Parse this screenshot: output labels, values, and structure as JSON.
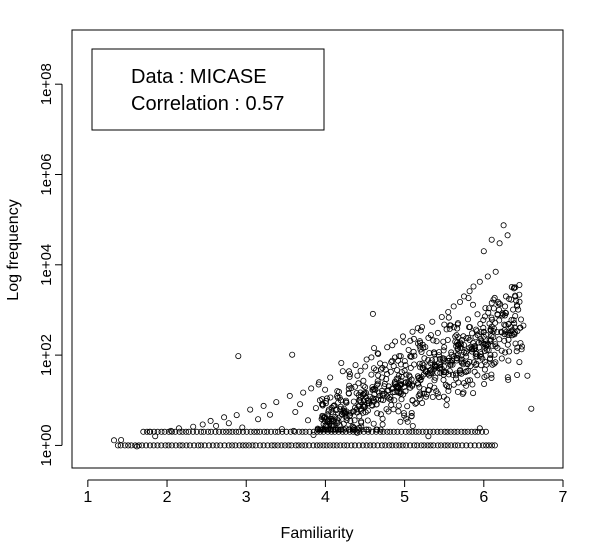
{
  "chart_data": {
    "type": "scatter",
    "title": "",
    "xlabel": "Familiarity",
    "ylabel": "Log frequency",
    "y_scale": "log10",
    "xlim": [
      0.8,
      7.0
    ],
    "ylim_log10": [
      -0.5,
      9.2
    ],
    "x_ticks": [
      1,
      2,
      3,
      4,
      5,
      6,
      7
    ],
    "x_tick_labels": [
      "1",
      "2",
      "3",
      "4",
      "5",
      "6",
      "7"
    ],
    "y_ticks_log10": [
      0,
      2,
      4,
      6,
      8
    ],
    "y_tick_labels": [
      "1e+00",
      "1e+02",
      "1e+04",
      "1e+06",
      "1e+08"
    ],
    "grid": false,
    "marker": "open-circle",
    "legend": {
      "placement": "top-left",
      "lines": [
        "Data : MICASE",
        "Correlation : 0.57"
      ]
    },
    "series": [
      {
        "points": [
          [
            1.33,
            1.3
          ],
          [
            1.42,
            1.32
          ],
          [
            1.62,
            0.95
          ],
          [
            1.78,
            2.0
          ],
          [
            1.85,
            1.6
          ],
          [
            2.05,
            2.1
          ],
          [
            2.15,
            2.4
          ],
          [
            2.33,
            2.6
          ],
          [
            2.45,
            2.9
          ],
          [
            2.55,
            3.5
          ],
          [
            2.62,
            2.7
          ],
          [
            2.72,
            4.2
          ],
          [
            2.78,
            3.1
          ],
          [
            2.88,
            4.7
          ],
          [
            2.9,
            95.0
          ],
          [
            2.95,
            2.5
          ],
          [
            3.05,
            6.2
          ],
          [
            3.15,
            3.8
          ],
          [
            3.22,
            7.5
          ],
          [
            3.3,
            4.8
          ],
          [
            3.38,
            9.1
          ],
          [
            3.45,
            2.3
          ],
          [
            3.55,
            12.5
          ],
          [
            3.58,
            102
          ],
          [
            3.62,
            5.5
          ],
          [
            3.68,
            8.2
          ],
          [
            3.72,
            14.8
          ],
          [
            3.78,
            3.6
          ],
          [
            3.82,
            18.3
          ],
          [
            3.88,
            6.7
          ],
          [
            3.92,
            25.0
          ],
          [
            3.96,
            4.2
          ],
          [
            4.02,
            11.0
          ],
          [
            4.06,
            32.0
          ],
          [
            4.1,
            7.4
          ],
          [
            4.15,
            16.0
          ],
          [
            4.18,
            2.8
          ],
          [
            4.22,
            44.0
          ],
          [
            4.26,
            9.8
          ],
          [
            4.3,
            21.0
          ],
          [
            4.35,
            5.6
          ],
          [
            4.38,
            60.0
          ],
          [
            4.42,
            13.0
          ],
          [
            4.45,
            3.4
          ],
          [
            4.48,
            27.0
          ],
          [
            4.52,
            80.0
          ],
          [
            4.55,
            8.6
          ],
          [
            4.58,
            37.0
          ],
          [
            4.6,
            820
          ],
          [
            4.63,
            17.0
          ],
          [
            4.66,
            110
          ],
          [
            4.7,
            4.9
          ],
          [
            4.72,
            52.0
          ],
          [
            4.75,
            23.0
          ],
          [
            4.78,
            150
          ],
          [
            4.8,
            11.0
          ],
          [
            4.83,
            70.0
          ],
          [
            4.86,
            6.3
          ],
          [
            4.88,
            200
          ],
          [
            4.9,
            30.0
          ],
          [
            4.93,
            95.0
          ],
          [
            4.95,
            14.0
          ],
          [
            4.98,
            260
          ],
          [
            5.0,
            45.0
          ],
          [
            5.02,
            3.9
          ],
          [
            5.05,
            130
          ],
          [
            5.07,
            19.0
          ],
          [
            5.1,
            330
          ],
          [
            5.12,
            62.0
          ],
          [
            5.15,
            8.8
          ],
          [
            5.17,
            180
          ],
          [
            5.2,
            28.0
          ],
          [
            5.22,
            420
          ],
          [
            5.25,
            85.0
          ],
          [
            5.27,
            12.0
          ],
          [
            5.3,
            240
          ],
          [
            5.32,
            40.0
          ],
          [
            5.35,
            550
          ],
          [
            5.37,
            115
          ],
          [
            5.4,
            16.0
          ],
          [
            5.42,
            310
          ],
          [
            5.45,
            55.0
          ],
          [
            5.47,
            700
          ],
          [
            5.5,
            150
          ],
          [
            5.52,
            22.0
          ],
          [
            5.55,
            900
          ],
          [
            5.57,
            380
          ],
          [
            5.6,
            75.0
          ],
          [
            5.62,
            1200
          ],
          [
            5.65,
            30.0
          ],
          [
            5.67,
            480
          ],
          [
            5.7,
            1500
          ],
          [
            5.72,
            100
          ],
          [
            5.75,
            2000
          ],
          [
            5.77,
            42.0
          ],
          [
            5.8,
            620
          ],
          [
            5.82,
            2600
          ],
          [
            5.85,
            140
          ],
          [
            5.87,
            3300
          ],
          [
            5.9,
            60.0
          ],
          [
            5.92,
            800
          ],
          [
            5.95,
            4200
          ],
          [
            5.97,
            190
          ],
          [
            6.0,
            20000
          ],
          [
            6.02,
            1100
          ],
          [
            6.05,
            5500
          ],
          [
            6.08,
            85.0
          ],
          [
            6.1,
            36000
          ],
          [
            6.12,
            250
          ],
          [
            6.15,
            7000
          ],
          [
            6.18,
            1500
          ],
          [
            6.2,
            30000
          ],
          [
            6.22,
            330
          ],
          [
            6.25,
            75000
          ],
          [
            6.28,
            2000
          ],
          [
            6.3,
            45000
          ],
          [
            6.32,
            120
          ],
          [
            6.35,
            600
          ],
          [
            6.38,
            3000
          ],
          [
            6.4,
            180
          ],
          [
            6.42,
            1200
          ],
          [
            6.45,
            70.0
          ],
          [
            6.5,
            450
          ],
          [
            6.55,
            35.0
          ],
          [
            6.6,
            6.5
          ],
          [
            3.6,
            2.1
          ],
          [
            3.85,
            1.7
          ],
          [
            4.4,
            1.9
          ],
          [
            5.3,
            1.6
          ],
          [
            5.95,
            2.4
          ]
        ],
        "count_band": {
          "description": "dense rows of observations at frequency 1 and 2",
          "rows": [
            {
              "y": 1,
              "x_range": [
                1.38,
                6.15
              ]
            },
            {
              "y": 2,
              "x_range": [
                1.7,
                6.05
              ]
            }
          ]
        },
        "cloud": {
          "description": "dense cloud of points rising with familiarity",
          "region": "x 3.9 to 6.5, log10 y 0.3 to 3.8"
        }
      }
    ]
  }
}
